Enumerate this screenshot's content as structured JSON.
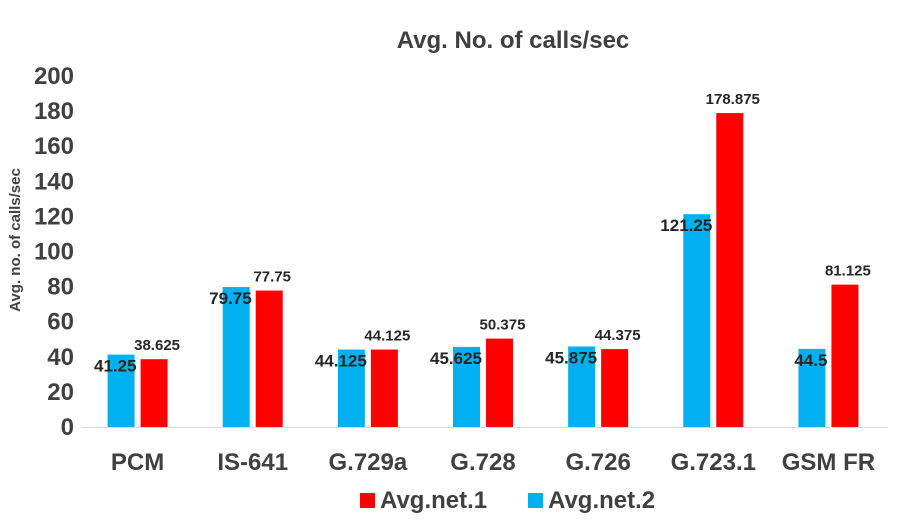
{
  "chart_data": {
    "type": "bar",
    "title": "Avg. No. of calls/sec",
    "ylabel": "Avg. no. of calls/sec",
    "xlabel": "",
    "ylim": [
      0,
      200
    ],
    "yticks": [
      0,
      20,
      40,
      60,
      80,
      100,
      120,
      140,
      160,
      180,
      200
    ],
    "grid": false,
    "legend_position": "bottom",
    "categories": [
      "PCM",
      "IS-641",
      "G.729a",
      "G.728",
      "G.726",
      "G.723.1",
      "GSM FR"
    ],
    "series": [
      {
        "name": "Avg.net.2",
        "color": "#00b0f0",
        "values": [
          41.25,
          79.75,
          44.125,
          45.625,
          45.875,
          121.25,
          44.5
        ],
        "labels": [
          "41.25",
          "79.75",
          "44.125",
          "45.625",
          "45.875",
          "121.25",
          "44.5"
        ]
      },
      {
        "name": "Avg.net.1",
        "color": "#ff0000",
        "values": [
          38.625,
          77.75,
          44.125,
          50.375,
          44.375,
          178.875,
          81.125
        ],
        "labels": [
          "38.625",
          "77.75",
          "44.125",
          "50.375",
          "44.375",
          "178.875",
          "81.125"
        ]
      }
    ],
    "legend_order": [
      "Avg.net.1",
      "Avg.net.2"
    ]
  }
}
